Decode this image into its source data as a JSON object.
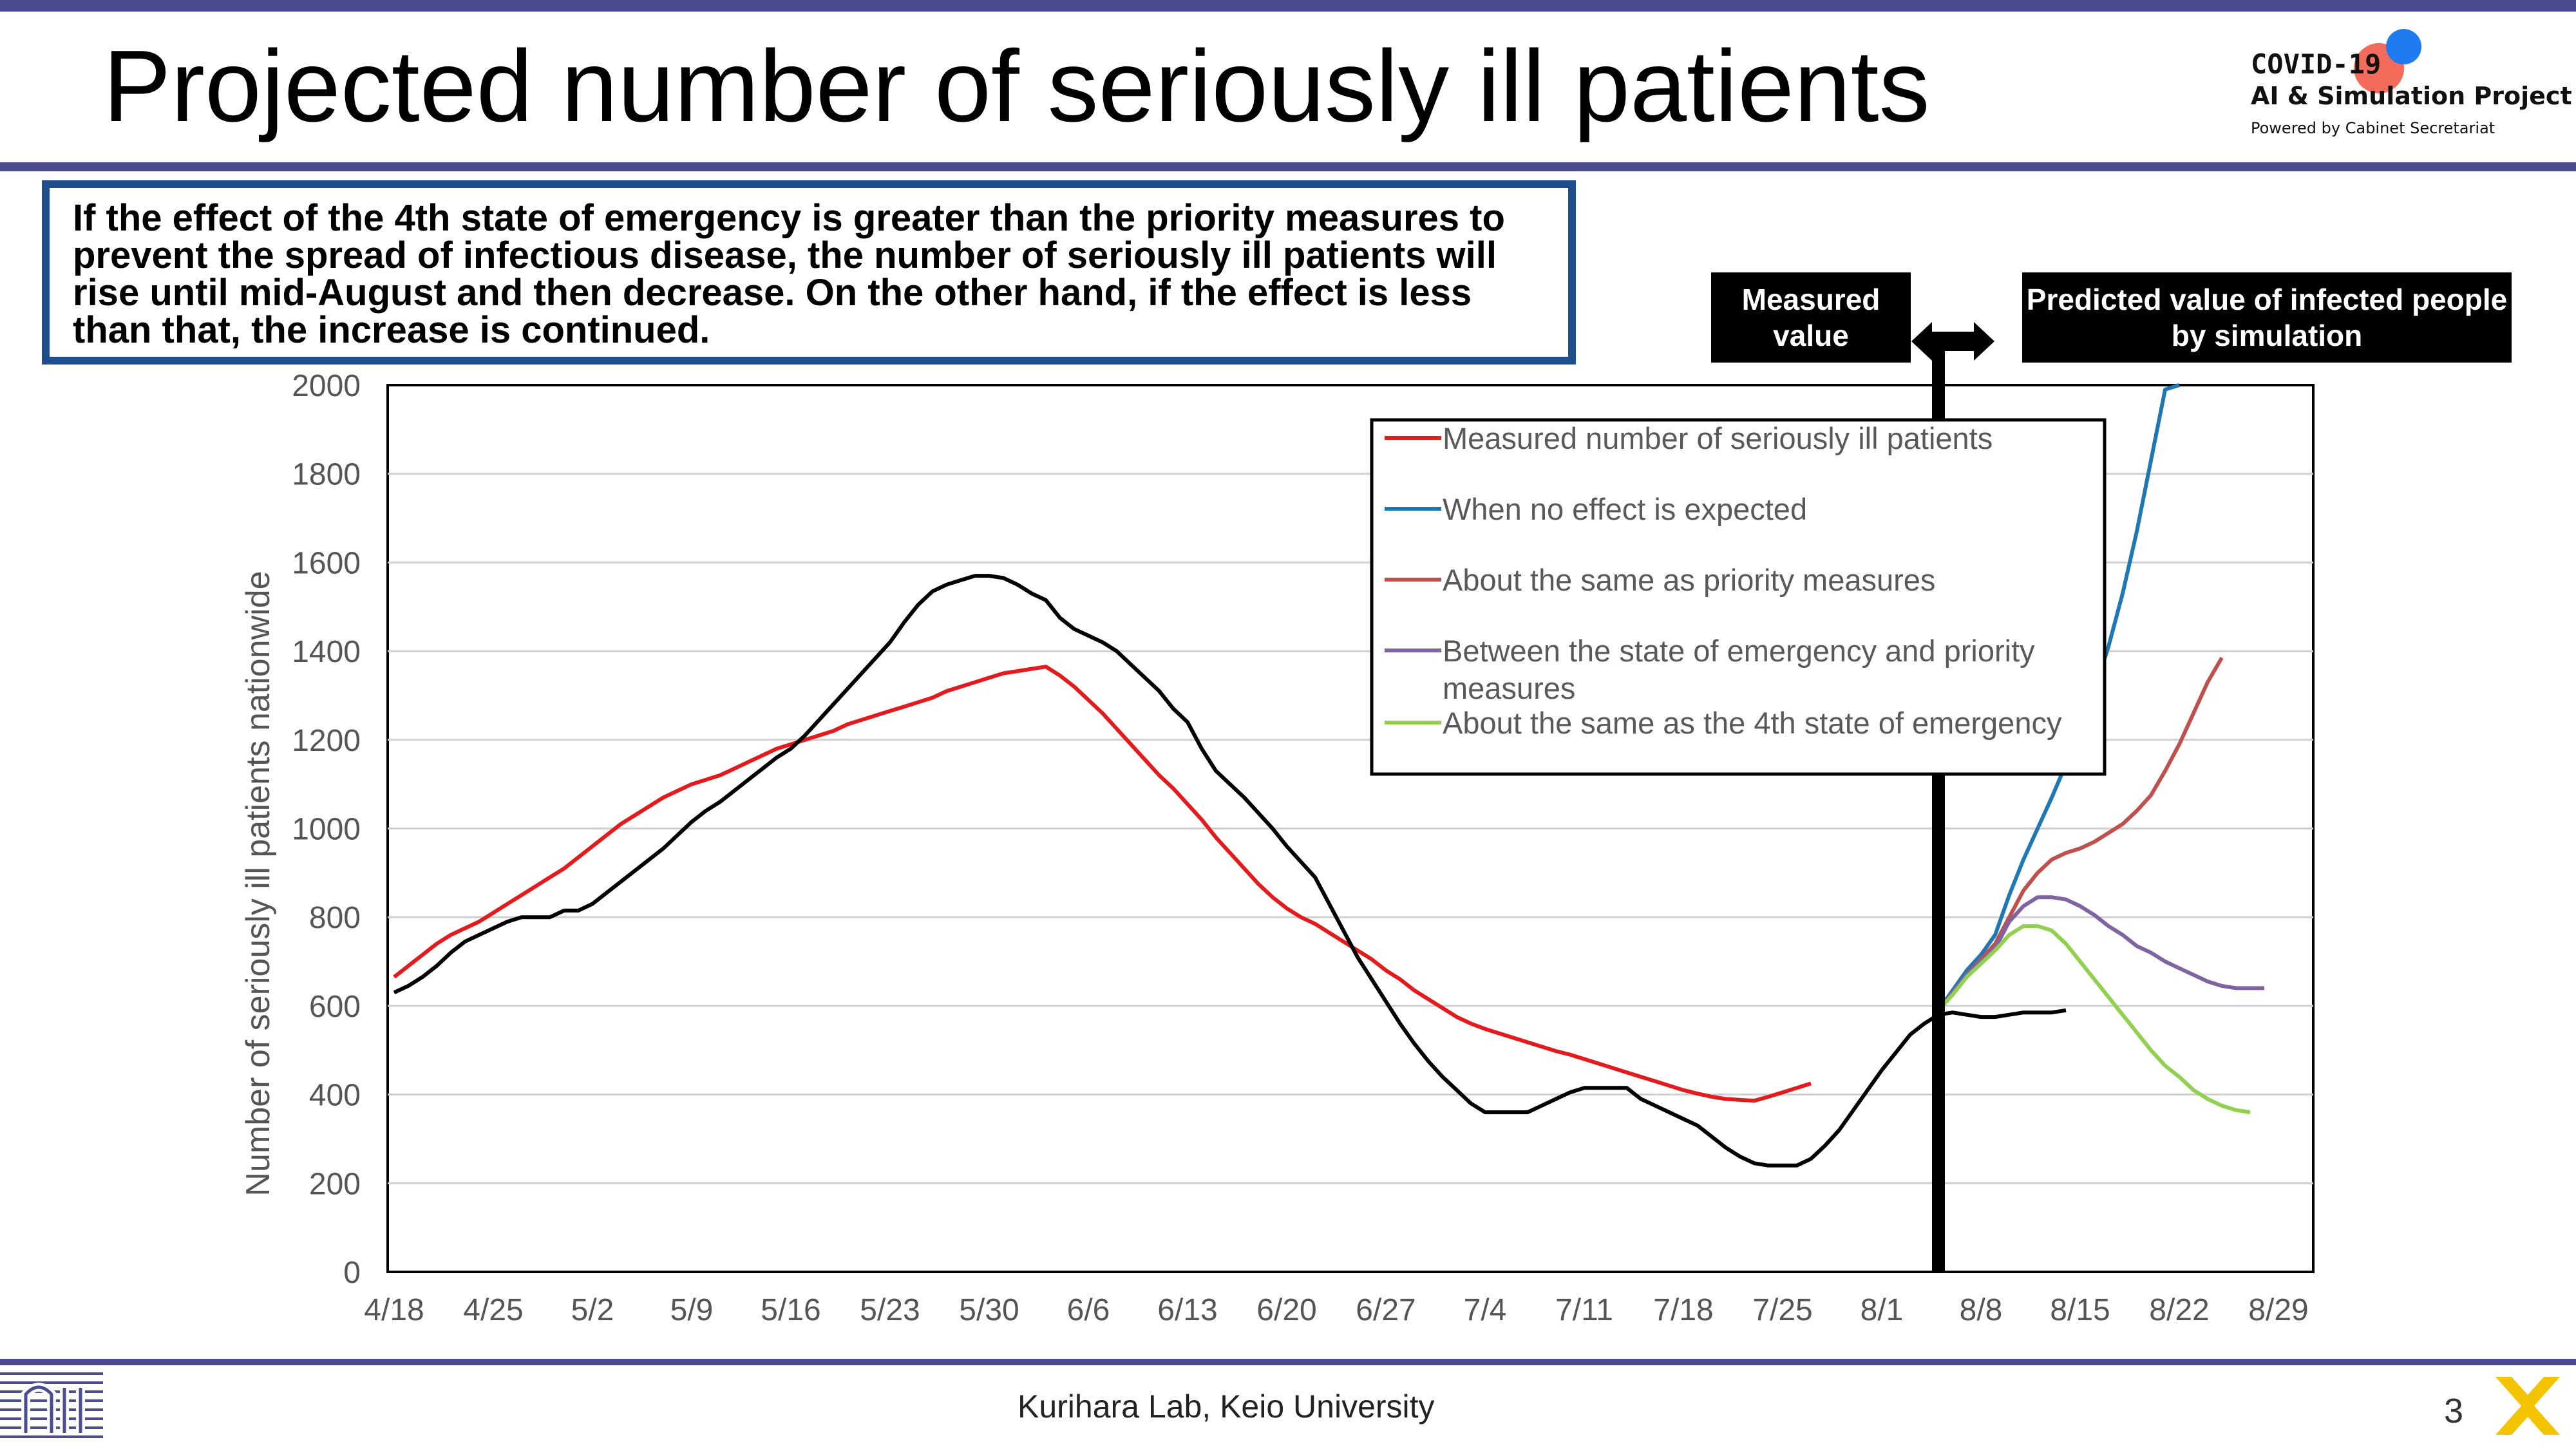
{
  "title": "Projected number of seriously ill patients",
  "logo": {
    "line1": "COVID-19",
    "line2": "AI & Simulation Project",
    "line3": "Powered by Cabinet Secretariat"
  },
  "callout": "If the effect of the 4th state of emergency is greater than the priority measures to prevent the spread of infectious disease, the number of seriously ill patients will rise until mid-August and then decrease. On the other hand, if the effect is less than that, the increase is continued.",
  "labels": {
    "measured": "Measured value",
    "predicted": "Predicted value of infected people by simulation"
  },
  "footer": "Kurihara Lab, Keio University",
  "page_number": "3",
  "colors": {
    "accent": "#4b4b8f",
    "callout_border": "#1f4e8c",
    "measured": "#e41a1c",
    "no_effect": "#1f77b4",
    "priority": "#c0504d",
    "between": "#8064a2",
    "emergency4": "#92d050",
    "black_curve": "#000000"
  },
  "chart_data": {
    "type": "line",
    "ylabel": "Number of seriously ill patients nationwide",
    "ylim": [
      0,
      2000
    ],
    "yticks": [
      0,
      200,
      400,
      600,
      800,
      1000,
      1200,
      1400,
      1600,
      1800,
      2000
    ],
    "x_categories": [
      "4/18",
      "4/25",
      "5/2",
      "5/9",
      "5/16",
      "5/23",
      "5/30",
      "6/6",
      "6/13",
      "6/20",
      "6/27",
      "7/4",
      "7/11",
      "7/18",
      "7/25",
      "8/1",
      "8/8",
      "8/15",
      "8/22",
      "8/29"
    ],
    "grid": "horizontal",
    "legend_placement": "top-right-inside",
    "legend_entries": [
      "Measured number of seriously ill patients",
      "When no effect is expected",
      "About the same as priority measures",
      "Between the state of emergency and priority measures",
      "About the same as the 4th state of emergency"
    ],
    "series": [
      {
        "name": "Measured number of seriously ill patients",
        "start_date": "4/18",
        "values": [
          665,
          690,
          715,
          740,
          760,
          775,
          790,
          810,
          830,
          850,
          870,
          890,
          910,
          935,
          960,
          985,
          1010,
          1030,
          1050,
          1070,
          1085,
          1100,
          1110,
          1120,
          1135,
          1150,
          1165,
          1180,
          1190,
          1200,
          1210,
          1220,
          1235,
          1245,
          1255,
          1265,
          1275,
          1285,
          1295,
          1310,
          1320,
          1330,
          1340,
          1350,
          1355,
          1360,
          1365,
          1345,
          1320,
          1290,
          1260,
          1225,
          1190,
          1155,
          1120,
          1090,
          1055,
          1020,
          980,
          945,
          910,
          875,
          845,
          820,
          800,
          785,
          765,
          745,
          725,
          705,
          680,
          660,
          635,
          615,
          595,
          575,
          560,
          548,
          538,
          528,
          518,
          508,
          498,
          490,
          480,
          470,
          460,
          450,
          440,
          430,
          420,
          410,
          402,
          395,
          390,
          388,
          386,
          395,
          405,
          415,
          425
        ]
      },
      {
        "name": "",
        "start_date": "4/18",
        "values": [
          630,
          645,
          665,
          690,
          720,
          745,
          760,
          775,
          790,
          800,
          800,
          800,
          815,
          815,
          830,
          855,
          880,
          905,
          930,
          955,
          985,
          1015,
          1040,
          1060,
          1085,
          1110,
          1135,
          1160,
          1180,
          1210,
          1245,
          1280,
          1315,
          1350,
          1385,
          1420,
          1465,
          1505,
          1535,
          1550,
          1560,
          1570,
          1570,
          1565,
          1550,
          1530,
          1515,
          1475,
          1450,
          1435,
          1420,
          1400,
          1370,
          1340,
          1310,
          1270,
          1240,
          1180,
          1130,
          1100,
          1070,
          1035,
          1000,
          960,
          925,
          890,
          830,
          770,
          710,
          660,
          610,
          560,
          515,
          475,
          440,
          410,
          380,
          360,
          360,
          360,
          360,
          375,
          390,
          405,
          415,
          415,
          415,
          415,
          390,
          375,
          360,
          345,
          330,
          305,
          280,
          260,
          245,
          240,
          240,
          240,
          255,
          285,
          320,
          365,
          410,
          455,
          495,
          535,
          560,
          580,
          585,
          580,
          575,
          575,
          580,
          585,
          585,
          585,
          590
        ]
      },
      {
        "name": "When no effect is expected",
        "start_date": "8/5",
        "values": [
          590,
          635,
          680,
          715,
          760,
          850,
          930,
          1000,
          1070,
          1145,
          1215,
          1310,
          1410,
          1530,
          1670,
          1830,
          1990,
          2000
        ]
      },
      {
        "name": "About the same as priority measures",
        "start_date": "8/5",
        "values": [
          590,
          630,
          670,
          705,
          740,
          800,
          860,
          900,
          930,
          945,
          955,
          970,
          990,
          1010,
          1040,
          1075,
          1130,
          1190,
          1260,
          1330,
          1385
        ]
      },
      {
        "name": "Between the state of emergency and priority measures",
        "start_date": "8/5",
        "values": [
          590,
          630,
          670,
          700,
          730,
          790,
          825,
          845,
          845,
          840,
          825,
          805,
          780,
          760,
          735,
          720,
          700,
          685,
          670,
          655,
          645,
          640,
          640,
          640
        ]
      },
      {
        "name": "About the same as the 4th state of emergency",
        "start_date": "8/5",
        "values": [
          590,
          625,
          665,
          695,
          725,
          760,
          780,
          780,
          770,
          740,
          700,
          660,
          620,
          580,
          540,
          500,
          465,
          440,
          410,
          390,
          375,
          365,
          360
        ]
      }
    ]
  }
}
